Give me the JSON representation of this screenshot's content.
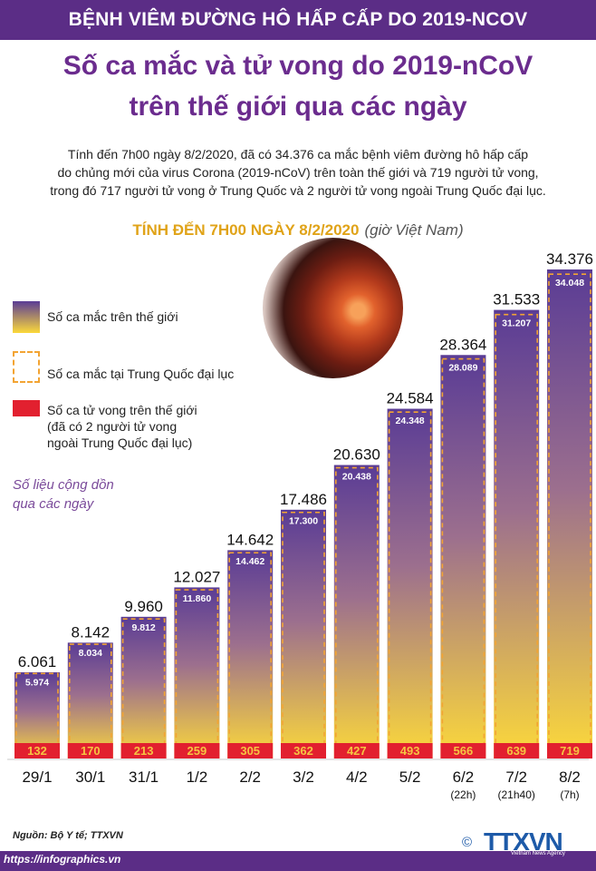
{
  "header": {
    "topbar": "BỆNH VIÊM ĐƯỜNG HÔ HẤP CẤP DO 2019-NCOV",
    "title_line1": "Số ca mắc và tử vong do 2019-nCoV",
    "title_line2": "trên thế giới qua các ngày",
    "intro_line1": "Tính đến 7h00 ngày 8/2/2020, đã có 34.376 ca mắc bệnh viêm đường hô hấp cấp",
    "intro_line2": "do chủng mới của virus Corona (2019-nCoV) trên toàn thế giới và 719 người tử vong,",
    "intro_line3": "trong đó 717 người tử vong ở Trung Quốc và 2 người tử vong ngoài Trung Quốc đại lục.",
    "subtitle": "TÍNH ĐẾN 7H00 NGÀY 8/2/2020",
    "subtitle_note": "(giờ Việt Nam)"
  },
  "legend": {
    "world": "Số ca mắc trên thế giới",
    "china": "Số ca mắc tại Trung Quốc đại lục",
    "death_line1": "Số ca tử vong trên thế giới",
    "death_line2": "(đã có 2 người tử vong",
    "death_line3": "ngoài Trung Quốc đại lục)"
  },
  "note": {
    "line1": "Số liệu cộng dồn",
    "line2": "qua các ngày"
  },
  "colors": {
    "purple": "#5b2d86",
    "bar_top": "#5a3c95",
    "bar_bottom": "#fcd93a",
    "china_dash": "#f3a433",
    "death_red": "#e2202f",
    "title_purple": "#6b2c8e",
    "subtitle_gold": "#e0a318"
  },
  "chart_data": {
    "type": "bar",
    "categories": [
      "29/1",
      "30/1",
      "31/1",
      "1/2",
      "2/2",
      "3/2",
      "4/2",
      "5/2",
      "6/2",
      "7/2",
      "8/2"
    ],
    "category_notes": [
      "",
      "",
      "",
      "",
      "",
      "",
      "",
      "",
      "(22h)",
      "(21h40)",
      "(7h)"
    ],
    "series": [
      {
        "name": "Số ca mắc trên thế giới",
        "values": [
          6061,
          8142,
          9960,
          12027,
          14642,
          17486,
          20630,
          24584,
          28364,
          31533,
          34376
        ],
        "labels": [
          "6.061",
          "8.142",
          "9.960",
          "12.027",
          "14.642",
          "17.486",
          "20.630",
          "24.584",
          "28.364",
          "31.533",
          "34.376"
        ]
      },
      {
        "name": "Số ca mắc tại Trung Quốc đại lục",
        "values": [
          5974,
          8034,
          9812,
          11860,
          14462,
          17300,
          20438,
          24348,
          28089,
          31207,
          34048
        ],
        "labels": [
          "5.974",
          "8.034",
          "9.812",
          "11.860",
          "14.462",
          "17.300",
          "20.438",
          "24.348",
          "28.089",
          "31.207",
          "34.048"
        ]
      },
      {
        "name": "Số ca tử vong trên thế giới",
        "values": [
          132,
          170,
          213,
          259,
          305,
          362,
          427,
          493,
          566,
          639,
          719
        ],
        "labels": [
          "132",
          "170",
          "213",
          "259",
          "305",
          "362",
          "427",
          "493",
          "566",
          "639",
          "719"
        ]
      }
    ],
    "ylim": [
      0,
      34376
    ]
  },
  "footer": {
    "source": "Nguồn: Bộ Y tế; TTXVN",
    "url": "https://infographics.vn",
    "logo": "TTXVN",
    "logo_sub": "Vietnam News Agency",
    "copyright": "©"
  }
}
